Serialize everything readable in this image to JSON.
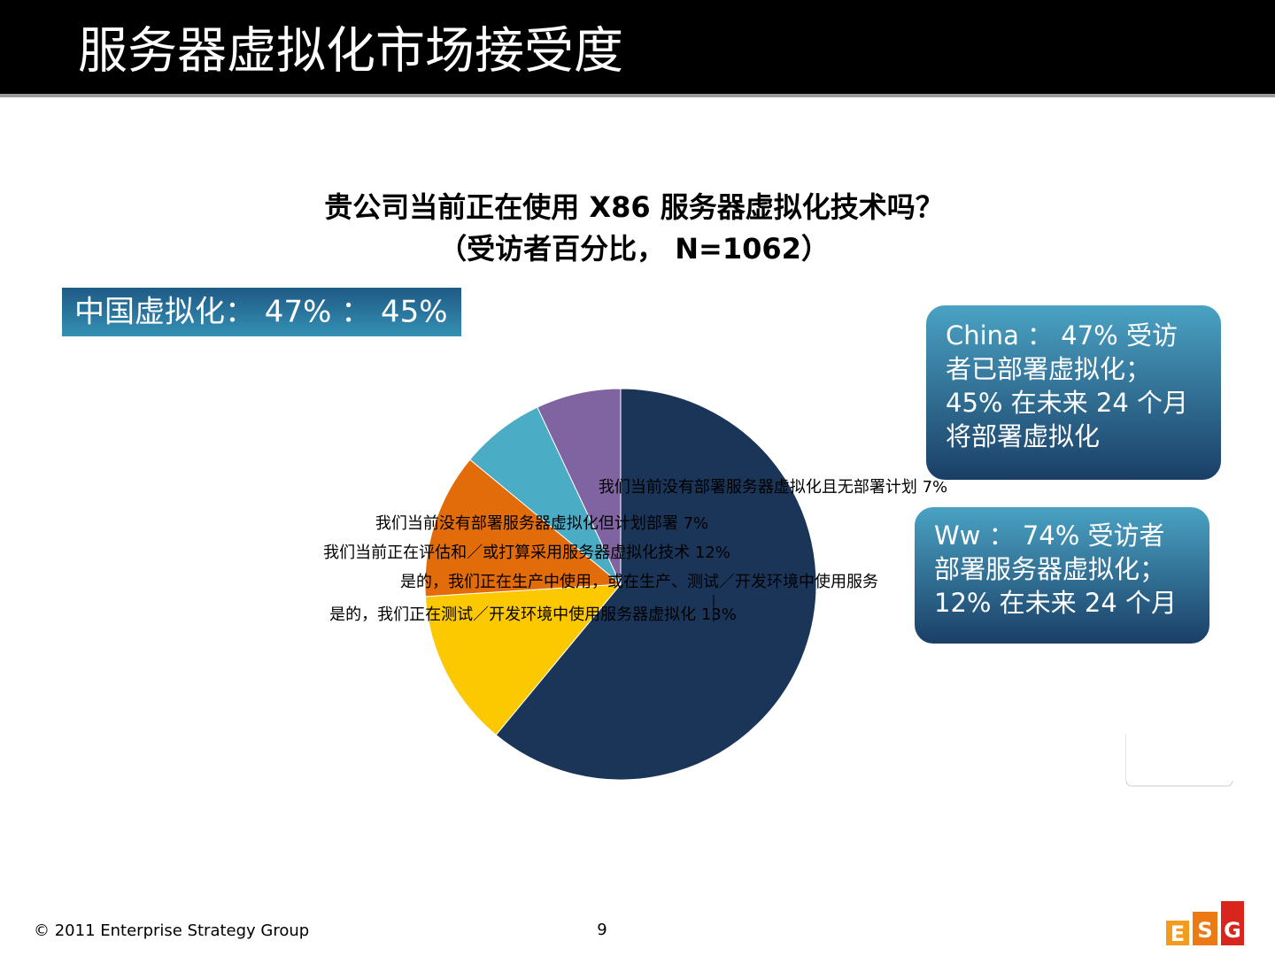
{
  "header": {
    "title": "服务器虚拟化市场接受度"
  },
  "chart_data": {
    "type": "pie",
    "title": [
      "贵公司当前正在使用 X86 服务器虚拟化技术吗？",
      "（受访者百分比， N=1062）"
    ],
    "categories": [
      "是的，我们正在生产中使用，或在生产、测试／开发环境中使用服务",
      "是的，我们正在测试／开发环境中使用服务器虚拟化",
      "我们当前正在评估和／或打算采用服务器虚拟化技术",
      "我们当前没有部署服务器虚拟化但计划部署",
      "我们当前没有部署服务器虚拟化且无部署计划"
    ],
    "values": [
      61,
      13,
      12,
      7,
      7
    ],
    "value_labels": [
      null,
      "13%",
      "12%",
      "7%",
      "7%"
    ],
    "colors": [
      "#1b3558",
      "#fcc800",
      "#e36c0a",
      "#4bacc6",
      "#8064a2"
    ]
  },
  "banner": "中国虚拟化： 47% ： 45%",
  "callouts": [
    [
      "China ： 47% 受访",
      "者已部署虚拟化；",
      "45% 在未来 24 个月",
      "将部署虚拟化"
    ],
    [
      "Ww ： 74% 受访者",
      "部署服务器虚拟化；",
      "12% 在未来 24 个月"
    ]
  ],
  "footer": {
    "copyright": "© 2011 Enterprise Strategy Group",
    "page": "9",
    "logo": [
      "E",
      "S",
      "G"
    ]
  }
}
